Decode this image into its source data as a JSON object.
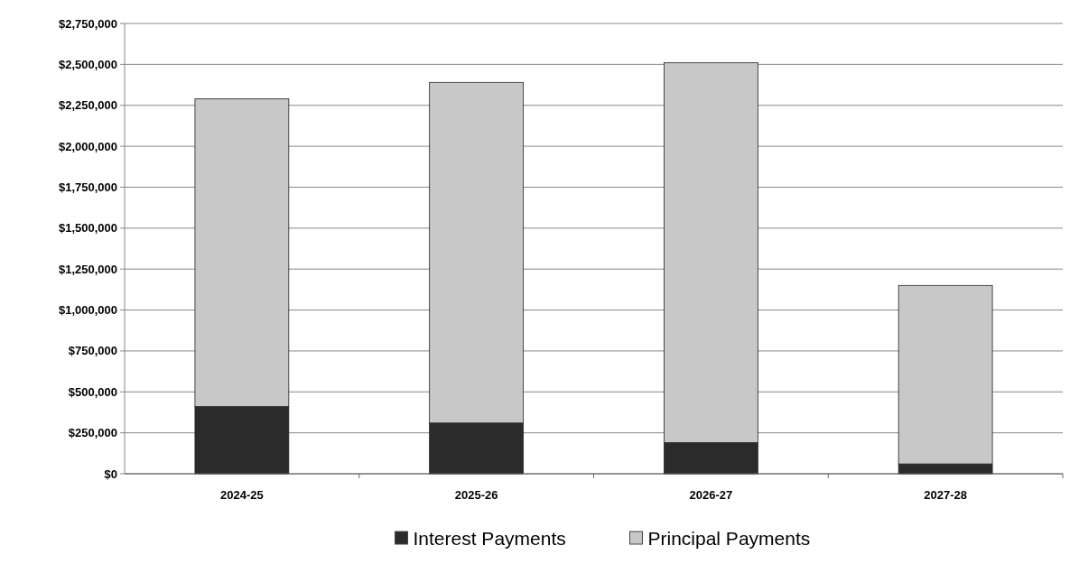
{
  "chart_data": {
    "type": "bar",
    "stacked": true,
    "categories": [
      "2024-25",
      "2025-26",
      "2026-27",
      "2027-28"
    ],
    "series": [
      {
        "name": "Interest Payments",
        "color": "#2b2b2b",
        "values": [
          410000,
          310000,
          190000,
          60000
        ]
      },
      {
        "name": "Principal Payments",
        "color": "#c8c8c8",
        "values": [
          1880000,
          2080000,
          2320000,
          1090000
        ]
      }
    ],
    "ylim": [
      0,
      2750000
    ],
    "yticks": [
      {
        "value": 0,
        "label": "$0"
      },
      {
        "value": 250000,
        "label": "$250,000"
      },
      {
        "value": 500000,
        "label": "$500,000"
      },
      {
        "value": 750000,
        "label": "$750,000"
      },
      {
        "value": 1000000,
        "label": "$1,000,000"
      },
      {
        "value": 1250000,
        "label": "$1,250,000"
      },
      {
        "value": 1500000,
        "label": "$1,500,000"
      },
      {
        "value": 1750000,
        "label": "$1,750,000"
      },
      {
        "value": 2000000,
        "label": "$2,000,000"
      },
      {
        "value": 2250000,
        "label": "$2,250,000"
      },
      {
        "value": 2500000,
        "label": "$2,500,000"
      },
      {
        "value": 2750000,
        "label": "$2,750,000"
      }
    ],
    "grid": "y",
    "legend": "bottom"
  }
}
